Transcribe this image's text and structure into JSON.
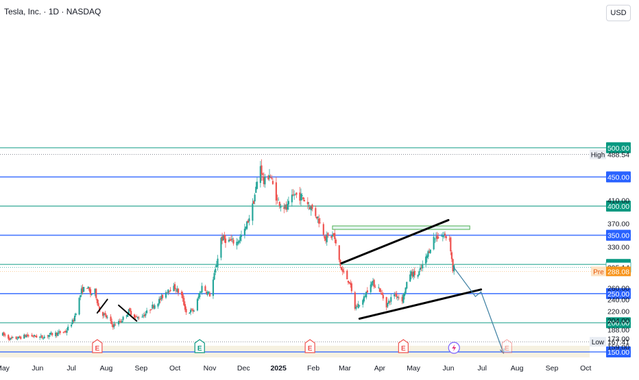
{
  "header": {
    "title": "Tesla, Inc. · 1D · NASDAQ",
    "currency_button": "USD"
  },
  "colors": {
    "up": "#26a69a",
    "down": "#ef5350",
    "blue_level": "#2962ff",
    "green_level": "#089981",
    "projection": "#3b7ea1",
    "pre_market": "#f7931a",
    "trendline": "#000000"
  },
  "chart_data": {
    "type": "candlestick",
    "title": "Tesla, Inc. · 1D · NASDAQ",
    "x_range": [
      "2024-05-01",
      "2025-10-18"
    ],
    "y_range": [
      150,
      520
    ],
    "x_tick_labels": [
      {
        "label": "May",
        "date": "2024-05-01"
      },
      {
        "label": "Jun",
        "date": "2024-06-01"
      },
      {
        "label": "Jul",
        "date": "2024-07-01"
      },
      {
        "label": "Aug",
        "date": "2024-08-01"
      },
      {
        "label": "Sep",
        "date": "2024-09-01"
      },
      {
        "label": "Oct",
        "date": "2024-10-01"
      },
      {
        "label": "Nov",
        "date": "2024-11-01"
      },
      {
        "label": "Dec",
        "date": "2024-12-01"
      },
      {
        "label": "2025",
        "date": "2025-01-01",
        "bold": true
      },
      {
        "label": "Feb",
        "date": "2025-02-01"
      },
      {
        "label": "Mar",
        "date": "2025-03-01"
      },
      {
        "label": "Apr",
        "date": "2025-04-01"
      },
      {
        "label": "May",
        "date": "2025-05-01"
      },
      {
        "label": "Jun",
        "date": "2025-06-01"
      },
      {
        "label": "Jul",
        "date": "2025-07-01"
      },
      {
        "label": "Aug",
        "date": "2025-08-01"
      },
      {
        "label": "Sep",
        "date": "2025-09-01"
      },
      {
        "label": "Oct",
        "date": "2025-10-01"
      }
    ],
    "y_tick_labels": [
      {
        "label": "410.00",
        "value": 410
      },
      {
        "label": "370.00",
        "value": 370
      },
      {
        "label": "330.00",
        "value": 330
      },
      {
        "label": "260.00",
        "value": 260
      },
      {
        "label": "240.00",
        "value": 240
      },
      {
        "label": "220.00",
        "value": 220
      },
      {
        "label": "204.00",
        "value": 204
      },
      {
        "label": "188.00",
        "value": 188
      },
      {
        "label": "173.00",
        "value": 173
      },
      {
        "label": "159.00",
        "value": 159
      }
    ],
    "horizontal_levels": [
      {
        "value": 500,
        "label": "500.00",
        "color": "green"
      },
      {
        "value": 450,
        "label": "450.00",
        "color": "blue"
      },
      {
        "value": 400,
        "label": "400.00",
        "color": "green"
      },
      {
        "value": 350,
        "label": "350.00",
        "color": "blue"
      },
      {
        "value": 300,
        "label": "300.00",
        "color": "green"
      },
      {
        "value": 250,
        "label": "250.00",
        "color": "blue"
      },
      {
        "value": 200,
        "label": "200.00",
        "color": "green"
      },
      {
        "value": 150,
        "label": "150.00",
        "color": "blue"
      }
    ],
    "high_marker": {
      "label": "High",
      "value": 488.54,
      "value_label": "488.54"
    },
    "low_marker": {
      "label": "Low",
      "value": 167.41,
      "value_label": "167.41"
    },
    "last_price": {
      "value": 295.14,
      "label": "295.14"
    },
    "pre_market": {
      "label": "Pre",
      "value": 288.08,
      "value_label": "288.08"
    },
    "resistance_zone": {
      "x0": "2025-02-18",
      "x1": "2025-06-20",
      "y0": 360,
      "y1": 366
    },
    "trendlines": [
      {
        "x0": "2025-02-26",
        "y0": 302,
        "x1": "2025-06-01",
        "y1": 376,
        "width": 3
      },
      {
        "x0": "2025-03-14",
        "y0": 207,
        "x1": "2025-06-30",
        "y1": 257,
        "width": 3
      },
      {
        "x0": "2024-07-24",
        "y0": 217,
        "x1": "2024-08-02",
        "y1": 240,
        "width": 2
      },
      {
        "x0": "2024-08-12",
        "y0": 230,
        "x1": "2024-08-28",
        "y1": 203,
        "width": 2
      }
    ],
    "projection_path": [
      {
        "x": "2025-06-05",
        "y": 297
      },
      {
        "x": "2025-06-25",
        "y": 245
      },
      {
        "x": "2025-06-30",
        "y": 253
      },
      {
        "x": "2025-07-20",
        "y": 148
      }
    ],
    "event_markers": [
      {
        "date": "2024-07-24",
        "label": "E",
        "color": "red"
      },
      {
        "date": "2024-10-23",
        "label": "E",
        "color": "green"
      },
      {
        "date": "2025-01-29",
        "label": "E",
        "color": "red"
      },
      {
        "date": "2025-04-22",
        "label": "E",
        "color": "red"
      },
      {
        "date": "2025-07-23",
        "label": "E",
        "color": "red",
        "faded": true
      }
    ],
    "lightning_marker": {
      "date": "2025-06-06"
    },
    "price_series": [
      [
        "2024-05-01",
        180
      ],
      [
        "2024-05-08",
        172
      ],
      [
        "2024-05-15",
        174
      ],
      [
        "2024-05-22",
        178
      ],
      [
        "2024-05-29",
        177
      ],
      [
        "2024-06-05",
        175
      ],
      [
        "2024-06-12",
        180
      ],
      [
        "2024-06-19",
        182
      ],
      [
        "2024-06-26",
        185
      ],
      [
        "2024-07-03",
        205
      ],
      [
        "2024-07-10",
        255
      ],
      [
        "2024-07-15",
        262
      ],
      [
        "2024-07-18",
        249
      ],
      [
        "2024-07-22",
        254
      ],
      [
        "2024-07-26",
        220
      ],
      [
        "2024-08-02",
        208
      ],
      [
        "2024-08-07",
        195
      ],
      [
        "2024-08-14",
        203
      ],
      [
        "2024-08-21",
        220
      ],
      [
        "2024-08-28",
        208
      ],
      [
        "2024-09-04",
        214
      ],
      [
        "2024-09-11",
        228
      ],
      [
        "2024-09-18",
        240
      ],
      [
        "2024-09-25",
        258
      ],
      [
        "2024-10-01",
        260
      ],
      [
        "2024-10-07",
        246
      ],
      [
        "2024-10-11",
        218
      ],
      [
        "2024-10-18",
        221
      ],
      [
        "2024-10-25",
        262
      ],
      [
        "2024-11-01",
        248
      ],
      [
        "2024-11-06",
        290
      ],
      [
        "2024-11-11",
        345
      ],
      [
        "2024-11-18",
        340
      ],
      [
        "2024-11-25",
        338
      ],
      [
        "2024-12-02",
        357
      ],
      [
        "2024-12-09",
        400
      ],
      [
        "2024-12-16",
        470
      ],
      [
        "2024-12-19",
        440
      ],
      [
        "2024-12-24",
        455
      ],
      [
        "2024-12-31",
        410
      ],
      [
        "2025-01-08",
        395
      ],
      [
        "2025-01-15",
        420
      ],
      [
        "2025-01-22",
        415
      ],
      [
        "2025-01-29",
        400
      ],
      [
        "2025-02-05",
        380
      ],
      [
        "2025-02-12",
        345
      ],
      [
        "2025-02-19",
        350
      ],
      [
        "2025-02-26",
        290
      ],
      [
        "2025-03-05",
        270
      ],
      [
        "2025-03-10",
        225
      ],
      [
        "2025-03-17",
        238
      ],
      [
        "2025-03-24",
        270
      ],
      [
        "2025-03-31",
        260
      ],
      [
        "2025-04-07",
        230
      ],
      [
        "2025-04-14",
        250
      ],
      [
        "2025-04-21",
        240
      ],
      [
        "2025-04-28",
        285
      ],
      [
        "2025-05-05",
        282
      ],
      [
        "2025-05-12",
        310
      ],
      [
        "2025-05-19",
        345
      ],
      [
        "2025-05-26",
        350
      ],
      [
        "2025-06-02",
        345
      ],
      [
        "2025-06-05",
        290
      ],
      [
        "2025-06-06",
        296
      ]
    ]
  }
}
